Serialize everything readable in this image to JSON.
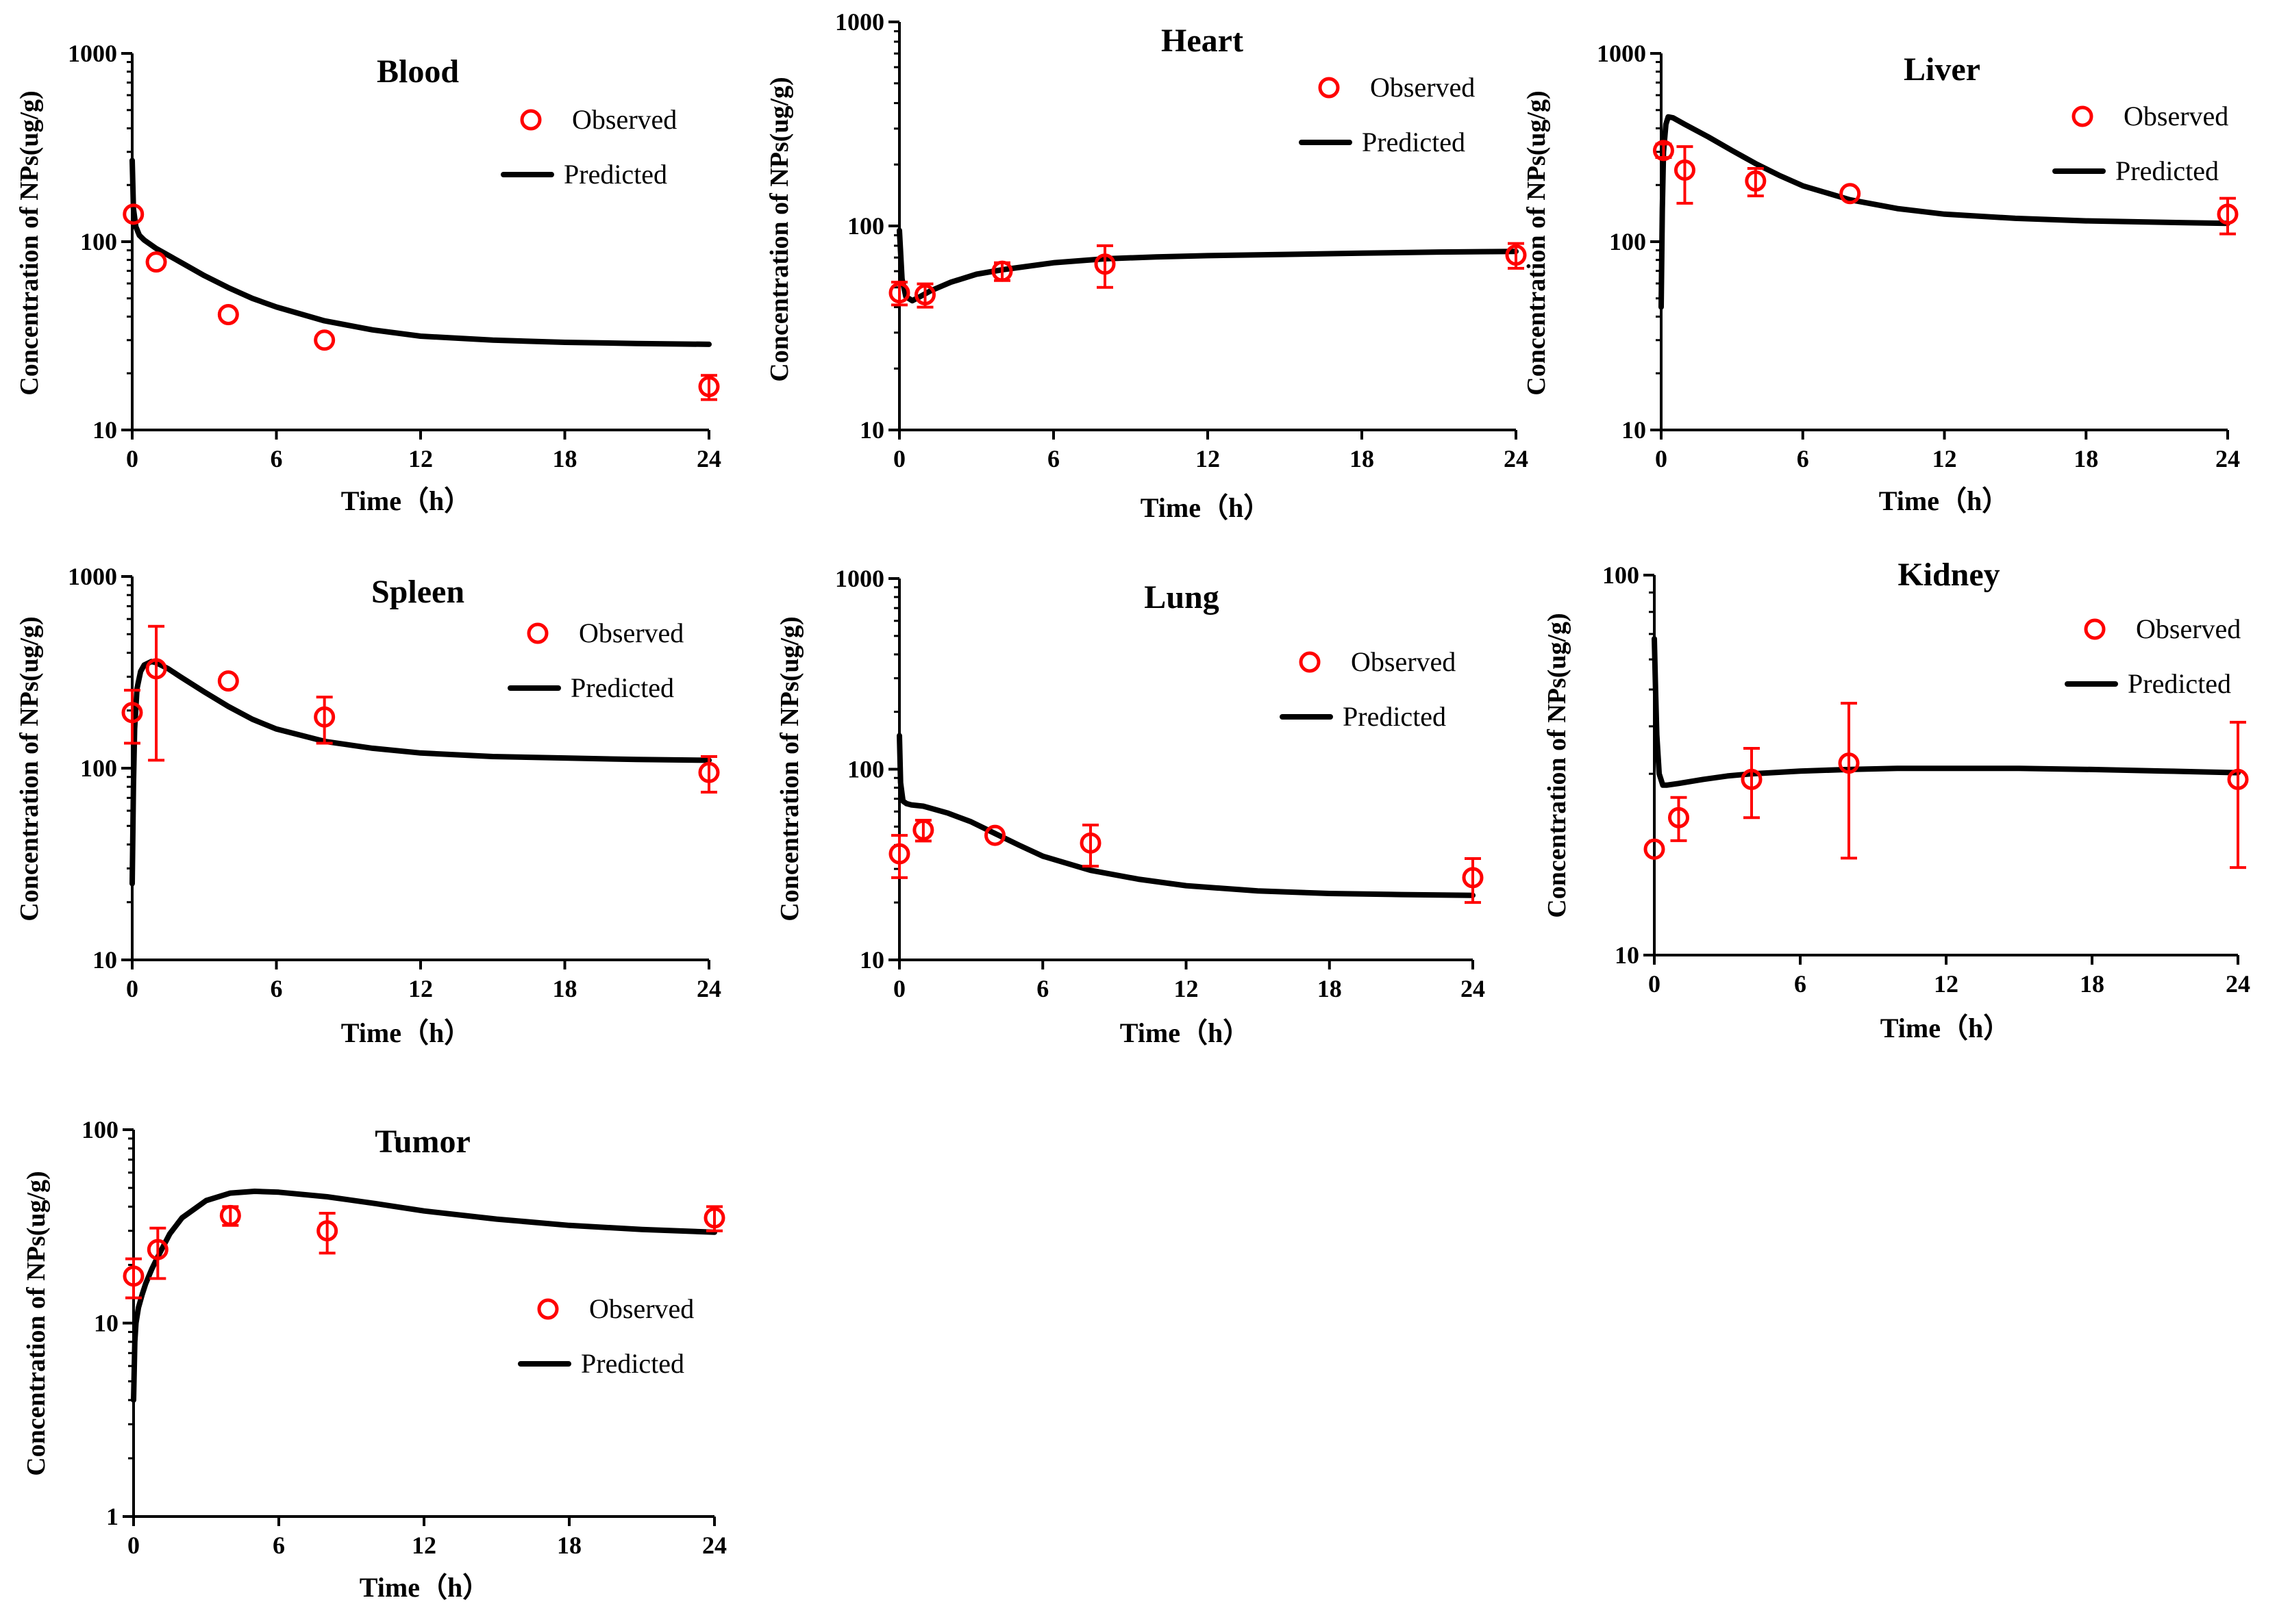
{
  "chart_data": [
    {
      "type": "line",
      "title": "Blood",
      "xlabel": "Time（h）",
      "ylabel": "Concentration of NPs(ug/g)",
      "yscale": "log",
      "ylim": [
        10,
        1000
      ],
      "xlim": [
        0,
        24
      ],
      "xticks": [
        "0",
        "6",
        "12",
        "18",
        "24"
      ],
      "yticks": [
        "10",
        "100",
        "1000"
      ],
      "legend": {
        "observed": "Observed",
        "predicted": "Predicted",
        "location": "top-right"
      },
      "observed": [
        {
          "x": 0.05,
          "y": 140
        },
        {
          "x": 1,
          "y": 78
        },
        {
          "x": 4,
          "y": 41
        },
        {
          "x": 8,
          "y": 30
        },
        {
          "x": 24,
          "y": 17,
          "err": 2.5
        }
      ],
      "predicted": {
        "x": [
          0,
          0.05,
          0.15,
          0.3,
          0.5,
          1,
          2,
          3,
          4,
          5,
          6,
          8,
          10,
          12,
          15,
          18,
          21,
          24
        ],
        "y": [
          270,
          150,
          120,
          108,
          102,
          92,
          78,
          66,
          57,
          50,
          45,
          38,
          34,
          31.5,
          30,
          29.2,
          28.8,
          28.5
        ]
      }
    },
    {
      "type": "line",
      "title": "Heart",
      "xlabel": "Time（h）",
      "ylabel": "Concentration of NPs(ug/g)",
      "yscale": "log",
      "ylim": [
        10,
        1000
      ],
      "xlim": [
        0,
        24
      ],
      "xticks": [
        "0",
        "6",
        "12",
        "18",
        "24"
      ],
      "yticks": [
        "10",
        "100",
        "1000"
      ],
      "legend": {
        "observed": "Observed",
        "predicted": "Predicted",
        "location": "top-right"
      },
      "observed": [
        {
          "x": 0,
          "y": 47,
          "err": 6
        },
        {
          "x": 1,
          "y": 46,
          "err": 6
        },
        {
          "x": 4,
          "y": 60,
          "err": 6
        },
        {
          "x": 8,
          "y": 65,
          "err": 15
        },
        {
          "x": 24,
          "y": 72,
          "err": 10
        }
      ],
      "predicted": {
        "x": [
          0,
          0.1,
          0.25,
          0.5,
          0.8,
          1.2,
          2,
          3,
          4,
          6,
          8,
          10,
          12,
          15,
          18,
          21,
          24
        ],
        "y": [
          95,
          55,
          45,
          43,
          45,
          48,
          53,
          58,
          61,
          66,
          69,
          70.5,
          71.5,
          72.5,
          73.5,
          74.5,
          75
        ]
      }
    },
    {
      "type": "line",
      "title": "Liver",
      "xlabel": "Time（h）",
      "ylabel": "Concentration of NPs(ug/g)",
      "yscale": "log",
      "ylim": [
        10,
        1000
      ],
      "xlim": [
        0,
        24
      ],
      "xticks": [
        "0",
        "6",
        "12",
        "18",
        "24"
      ],
      "yticks": [
        "10",
        "100",
        "1000"
      ],
      "legend": {
        "observed": "Observed",
        "predicted": "Predicted",
        "location": "top-right"
      },
      "observed": [
        {
          "x": 0.1,
          "y": 305,
          "err": 25
        },
        {
          "x": 1,
          "y": 240,
          "err": 80
        },
        {
          "x": 4,
          "y": 210,
          "err": 35
        },
        {
          "x": 8,
          "y": 180
        },
        {
          "x": 24,
          "y": 140,
          "err": 30
        }
      ],
      "predicted": {
        "x": [
          0,
          0.05,
          0.1,
          0.2,
          0.3,
          0.5,
          1,
          2,
          3,
          4,
          5,
          6,
          8,
          10,
          12,
          15,
          18,
          21,
          24
        ],
        "y": [
          45,
          150,
          300,
          420,
          460,
          455,
          420,
          360,
          305,
          260,
          225,
          198,
          167,
          150,
          140,
          133,
          129,
          127,
          125
        ]
      }
    },
    {
      "type": "line",
      "title": "Spleen",
      "xlabel": "Time（h）",
      "ylabel": "Concentration of NPs(ug/g)",
      "yscale": "log",
      "ylim": [
        10,
        1000
      ],
      "xlim": [
        0,
        24
      ],
      "xticks": [
        "0",
        "6",
        "12",
        "18",
        "24"
      ],
      "yticks": [
        "10",
        "100",
        "1000"
      ],
      "legend": {
        "observed": "Observed",
        "predicted": "Predicted",
        "location": "top-right"
      },
      "observed": [
        {
          "x": 0,
          "y": 195,
          "err": 60
        },
        {
          "x": 1,
          "y": 330,
          "err": 220
        },
        {
          "x": 4,
          "y": 285
        },
        {
          "x": 8,
          "y": 185,
          "err": 50
        },
        {
          "x": 24,
          "y": 95,
          "err": 20
        }
      ],
      "predicted": {
        "x": [
          0,
          0.05,
          0.1,
          0.2,
          0.35,
          0.5,
          0.8,
          1,
          1.5,
          2,
          3,
          4,
          5,
          6,
          8,
          10,
          12,
          15,
          18,
          21,
          24
        ],
        "y": [
          25,
          80,
          160,
          260,
          320,
          345,
          360,
          355,
          330,
          300,
          250,
          210,
          180,
          160,
          138,
          127,
          120,
          115,
          113,
          111,
          110
        ]
      }
    },
    {
      "type": "line",
      "title": "Lung",
      "xlabel": "Time（h）",
      "ylabel": "Concentration of NPs(ug/g)",
      "yscale": "log",
      "ylim": [
        10,
        1000
      ],
      "xlim": [
        0,
        24
      ],
      "xticks": [
        "0",
        "6",
        "12",
        "18",
        "24"
      ],
      "yticks": [
        "10",
        "100",
        "1000"
      ],
      "legend": {
        "observed": "Observed",
        "predicted": "Predicted",
        "location": "top-right"
      },
      "observed": [
        {
          "x": 0,
          "y": 36,
          "err": 9
        },
        {
          "x": 1,
          "y": 48,
          "err": 6
        },
        {
          "x": 4,
          "y": 45
        },
        {
          "x": 8,
          "y": 41,
          "err": 10
        },
        {
          "x": 24,
          "y": 27,
          "err": 7
        }
      ],
      "predicted": {
        "x": [
          0,
          0.05,
          0.15,
          0.3,
          0.5,
          1,
          2,
          3,
          4,
          5,
          6,
          8,
          10,
          12,
          15,
          18,
          21,
          24
        ],
        "y": [
          150,
          85,
          68,
          66,
          65,
          64,
          59,
          53,
          46,
          40,
          35,
          29.5,
          26.5,
          24.5,
          23,
          22.3,
          22,
          21.8
        ]
      }
    },
    {
      "type": "line",
      "title": "Kidney",
      "xlabel": "Time（h）",
      "ylabel": "Concentration of NPs(ug/g)",
      "yscale": "log",
      "ylim": [
        10,
        100
      ],
      "xlim": [
        0,
        24
      ],
      "xticks": [
        "0",
        "6",
        "12",
        "18",
        "24"
      ],
      "yticks": [
        "10",
        "100"
      ],
      "legend": {
        "observed": "Observed",
        "predicted": "Predicted",
        "location": "top-right"
      },
      "observed": [
        {
          "x": 0,
          "y": 19
        },
        {
          "x": 1,
          "y": 23,
          "err": 3
        },
        {
          "x": 4,
          "y": 29,
          "err": 6
        },
        {
          "x": 8,
          "y": 32,
          "err": 14
        },
        {
          "x": 24,
          "y": 29,
          "err": 12
        }
      ],
      "predicted": {
        "x": [
          0,
          0.05,
          0.1,
          0.2,
          0.35,
          0.5,
          1,
          2,
          3,
          4,
          6,
          8,
          10,
          12,
          15,
          18,
          21,
          24
        ],
        "y": [
          68,
          50,
          38,
          30,
          28,
          28,
          28.3,
          29,
          29.6,
          30,
          30.5,
          30.8,
          31,
          31,
          31,
          30.8,
          30.5,
          30.2
        ]
      }
    },
    {
      "type": "line",
      "title": "Tumor",
      "xlabel": "Time（h）",
      "ylabel": "Concentration of NPs(ug/g)",
      "yscale": "log",
      "ylim": [
        1,
        100
      ],
      "xlim": [
        0,
        24
      ],
      "xticks": [
        "0",
        "6",
        "12",
        "18",
        "24"
      ],
      "yticks": [
        "1",
        "10",
        "100"
      ],
      "legend": {
        "observed": "Observed",
        "predicted": "Predicted",
        "location": "center-right"
      },
      "observed": [
        {
          "x": 0,
          "y": 17.5,
          "err": 4
        },
        {
          "x": 1,
          "y": 24,
          "err": 7
        },
        {
          "x": 4,
          "y": 36,
          "err": 4
        },
        {
          "x": 8,
          "y": 30,
          "err": 7
        },
        {
          "x": 24,
          "y": 35,
          "err": 5
        }
      ],
      "predicted": {
        "x": [
          0,
          0.05,
          0.1,
          0.2,
          0.35,
          0.5,
          0.75,
          1,
          1.5,
          2,
          3,
          4,
          5,
          6,
          8,
          10,
          12,
          15,
          18,
          21,
          24
        ],
        "y": [
          4,
          8,
          10,
          12,
          14,
          16,
          19,
          22,
          29,
          35,
          43,
          47,
          48,
          47.5,
          45,
          41.5,
          38,
          34.5,
          32,
          30.5,
          29.5
        ]
      }
    }
  ]
}
